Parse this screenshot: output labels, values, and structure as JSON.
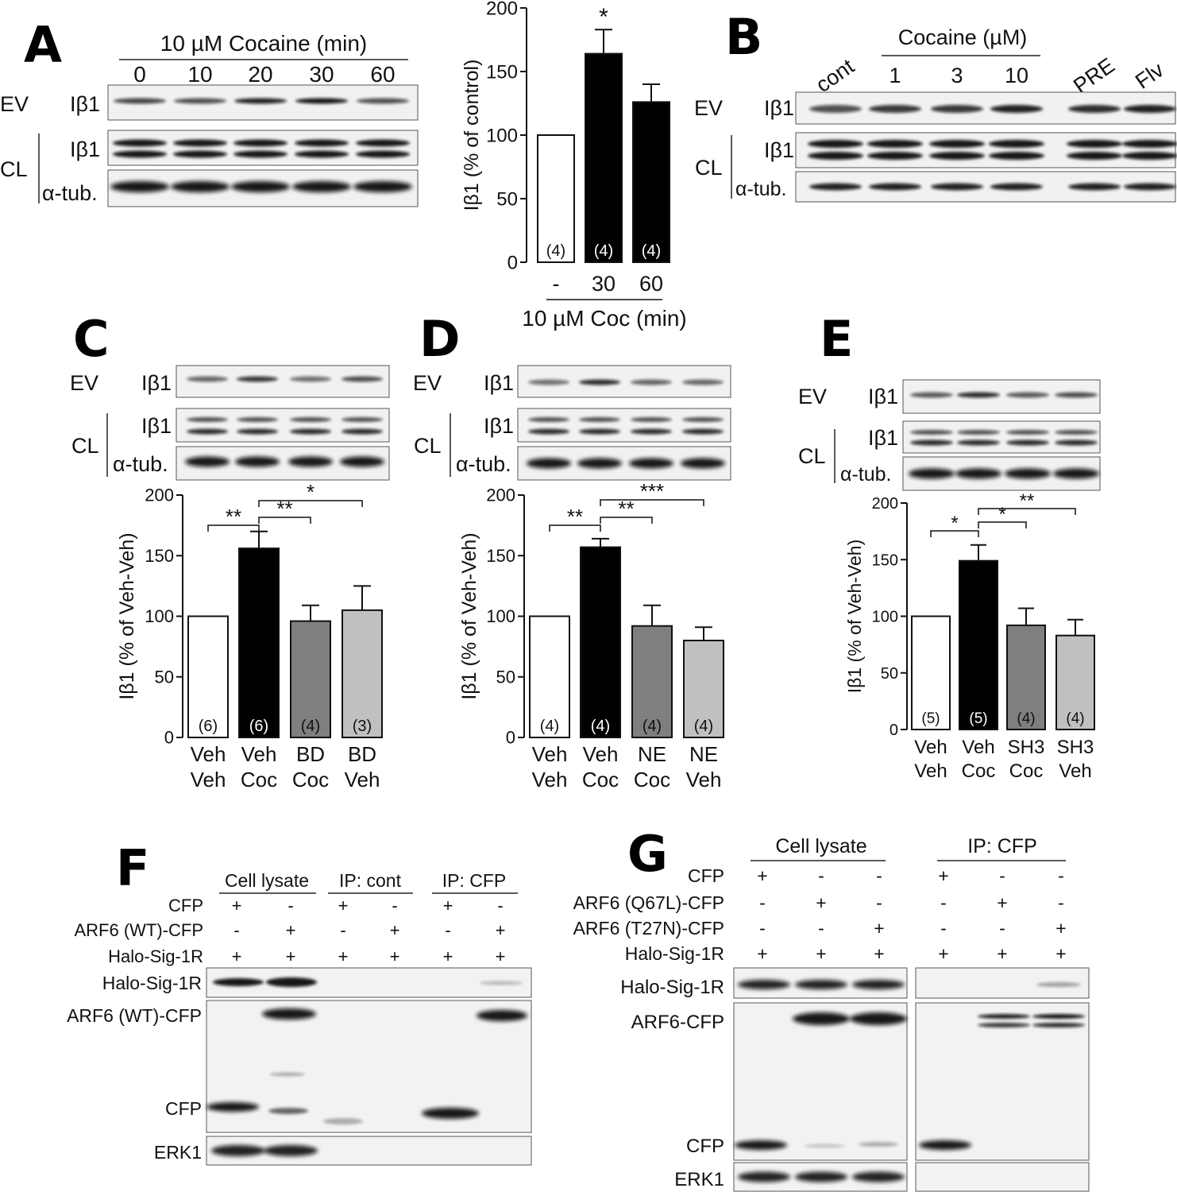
{
  "panels": {
    "A": {
      "letter": "A",
      "treatment_label": "10 µM Cocaine (min)",
      "lane_labels": [
        "0",
        "10",
        "20",
        "30",
        "60"
      ],
      "row_labels": {
        "ev": "EV",
        "cl": "CL",
        "ib1": "Iβ1",
        "tub": "α-tub."
      }
    },
    "B": {
      "letter": "B",
      "group_label": "Cocaine (µM)",
      "lane_labels": [
        "cont",
        "1",
        "3",
        "10",
        "PRE",
        "Flv"
      ],
      "row_labels": {
        "ev": "EV",
        "cl": "CL",
        "ib1": "Iβ1",
        "tub": "α-tub."
      }
    },
    "C": {
      "letter": "C",
      "row_labels": {
        "ev": "EV",
        "cl": "CL",
        "ib1": "Iβ1",
        "tub": "α-tub."
      }
    },
    "D": {
      "letter": "D",
      "row_labels": {
        "ev": "EV",
        "cl": "CL",
        "ib1": "Iβ1",
        "tub": "α-tub."
      }
    },
    "E": {
      "letter": "E",
      "row_labels": {
        "ev": "EV",
        "cl": "CL",
        "ib1": "Iβ1",
        "tub": "α-tub."
      }
    },
    "F": {
      "letter": "F",
      "group_labels": [
        "Cell lysate",
        "IP: cont",
        "IP: CFP"
      ],
      "condition_rows": [
        {
          "label": "CFP",
          "signs": [
            "+",
            "-",
            "+",
            "-",
            "+",
            "-"
          ]
        },
        {
          "label": "ARF6 (WT)-CFP",
          "signs": [
            "-",
            "+",
            "-",
            "+",
            "-",
            "+"
          ]
        },
        {
          "label": "Halo-Sig-1R",
          "signs": [
            "+",
            "+",
            "+",
            "+",
            "+",
            "+"
          ]
        }
      ],
      "blot_labels": [
        "Halo-Sig-1R",
        "ARF6 (WT)-CFP",
        "CFP",
        "ERK1"
      ]
    },
    "G": {
      "letter": "G",
      "group_labels": [
        "Cell lysate",
        "IP: CFP"
      ],
      "condition_rows": [
        {
          "label": "CFP",
          "signs": [
            "+",
            "-",
            "-",
            "+",
            "-",
            "-"
          ]
        },
        {
          "label": "ARF6 (Q67L)-CFP",
          "signs": [
            "-",
            "+",
            "-",
            "-",
            "+",
            "-"
          ]
        },
        {
          "label": "ARF6 (T27N)-CFP",
          "signs": [
            "-",
            "-",
            "+",
            "-",
            "-",
            "+"
          ]
        },
        {
          "label": "Halo-Sig-1R",
          "signs": [
            "+",
            "+",
            "+",
            "+",
            "+",
            "+"
          ]
        }
      ],
      "blot_labels": [
        "Halo-Sig-1R",
        "ARF6-CFP",
        "CFP",
        "ERK1"
      ]
    }
  },
  "chart_data": [
    {
      "id": "A",
      "type": "bar",
      "categories": [
        "-",
        "30",
        "60"
      ],
      "values": [
        100,
        164,
        126
      ],
      "errors": [
        0,
        19,
        14
      ],
      "n_labels": [
        "(4)",
        "(4)",
        "(4)"
      ],
      "fill_colors": [
        "#ffffff",
        "#000000",
        "#000000"
      ],
      "significance": [
        {
          "bar": 1,
          "text": "*"
        }
      ],
      "xlabel": "10 µM Coc (min)",
      "ylabel": "Iβ1 (% of control)",
      "ylim": [
        0,
        200
      ],
      "yticks": [
        "0",
        "50",
        "100",
        "150",
        "200"
      ]
    },
    {
      "id": "C",
      "type": "bar",
      "categories": [
        [
          "Veh",
          "Veh"
        ],
        [
          "Veh",
          "Coc"
        ],
        [
          "BD",
          "Coc"
        ],
        [
          "BD",
          "Veh"
        ]
      ],
      "values": [
        100,
        156,
        96,
        105
      ],
      "errors": [
        0,
        14,
        13,
        20
      ],
      "n_labels": [
        "(6)",
        "(6)",
        "(4)",
        "(3)"
      ],
      "fill_colors": [
        "#ffffff",
        "#000000",
        "#7f7f7f",
        "#c0c0c0"
      ],
      "brackets": [
        {
          "from": 0,
          "to": 1,
          "text": "**"
        },
        {
          "from": 1,
          "to": 2,
          "text": "**"
        },
        {
          "from": 1,
          "to": 3,
          "text": "*"
        }
      ],
      "ylabel": "Iβ1 (% of Veh-Veh)",
      "ylim": [
        0,
        200
      ],
      "yticks": [
        "0",
        "50",
        "100",
        "150",
        "200"
      ]
    },
    {
      "id": "D",
      "type": "bar",
      "categories": [
        [
          "Veh",
          "Veh"
        ],
        [
          "Veh",
          "Coc"
        ],
        [
          "NE",
          "Coc"
        ],
        [
          "NE",
          "Veh"
        ]
      ],
      "values": [
        100,
        157,
        92,
        80
      ],
      "errors": [
        0,
        7,
        17,
        11
      ],
      "n_labels": [
        "(4)",
        "(4)",
        "(4)",
        "(4)"
      ],
      "fill_colors": [
        "#ffffff",
        "#000000",
        "#7f7f7f",
        "#c0c0c0"
      ],
      "brackets": [
        {
          "from": 0,
          "to": 1,
          "text": "**"
        },
        {
          "from": 1,
          "to": 2,
          "text": "**"
        },
        {
          "from": 1,
          "to": 3,
          "text": "***"
        }
      ],
      "ylabel": "Iβ1 (% of Veh-Veh)",
      "ylim": [
        0,
        200
      ],
      "yticks": [
        "0",
        "50",
        "100",
        "150",
        "200"
      ]
    },
    {
      "id": "E",
      "type": "bar",
      "categories": [
        [
          "Veh",
          "Veh"
        ],
        [
          "Veh",
          "Coc"
        ],
        [
          "SH3",
          "Coc"
        ],
        [
          "SH3",
          "Veh"
        ]
      ],
      "values": [
        100,
        149,
        92,
        83
      ],
      "errors": [
        0,
        14,
        15,
        14
      ],
      "n_labels": [
        "(5)",
        "(5)",
        "(4)",
        "(4)"
      ],
      "fill_colors": [
        "#ffffff",
        "#000000",
        "#7f7f7f",
        "#c0c0c0"
      ],
      "brackets": [
        {
          "from": 0,
          "to": 1,
          "text": "*"
        },
        {
          "from": 1,
          "to": 2,
          "text": "*"
        },
        {
          "from": 1,
          "to": 3,
          "text": "**"
        }
      ],
      "ylabel": "Iβ1 (% of Veh-Veh)",
      "ylim": [
        0,
        200
      ],
      "yticks": [
        "0",
        "50",
        "100",
        "150",
        "200"
      ]
    }
  ]
}
